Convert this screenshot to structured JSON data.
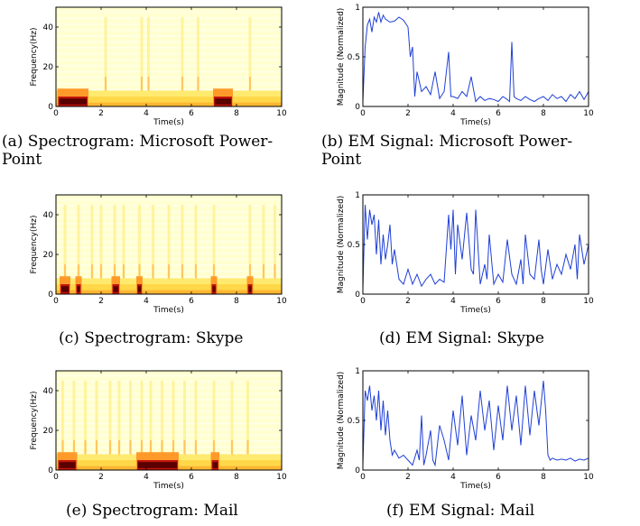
{
  "captions": {
    "a": "(a) Spectrogram: Microsoft Power-Point",
    "b": "(b) EM Signal: Microsoft Power-Point",
    "c": "(c) Spectrogram: Skype",
    "d": "(d) EM Signal: Skype",
    "e": "(e) Spectrogram: Mail",
    "f": "(f) EM Signal: Mail"
  },
  "caption_lines": {
    "a": [
      "(a) Spectrogram: Microsoft Power-",
      "Point"
    ],
    "b": [
      "(b) EM Signal: Microsoft Power-",
      "Point"
    ]
  },
  "colors": {
    "line": "#1f3fd6",
    "spec_light": "#ffffd0",
    "spec_mid": "#ffea70",
    "spec_warm": "#ff9a2a",
    "spec_hot": "#c2140c",
    "spec_dark": "#5a0000"
  },
  "chart_data": [
    {
      "id": "a",
      "type": "heatmap",
      "xlabel": "Time(s)",
      "ylabel": "Frequency(Hz)",
      "xlim": [
        0,
        10
      ],
      "ylim": [
        0,
        50
      ],
      "xticks": [
        "0",
        "2",
        "4",
        "6",
        "8",
        "10"
      ],
      "yticks": [
        "0",
        "20",
        "40"
      ],
      "low_band_hz": [
        0,
        5
      ],
      "strong_segments": [
        {
          "t0": 0.1,
          "t1": 1.4
        },
        {
          "t0": 7.0,
          "t1": 7.8
        }
      ],
      "bursts_s": [
        2.2,
        3.8,
        4.1,
        5.6,
        6.3,
        8.6
      ]
    },
    {
      "id": "b",
      "type": "line",
      "xlabel": "Time(s)",
      "ylabel": "Magnitude (Normalized)",
      "xlim": [
        0,
        10
      ],
      "ylim": [
        0,
        1
      ],
      "xticks": [
        "0",
        "2",
        "4",
        "6",
        "8",
        "10"
      ],
      "yticks": [
        "0",
        "0.5",
        "1"
      ],
      "x": [
        0,
        0.1,
        0.2,
        0.3,
        0.4,
        0.5,
        0.6,
        0.7,
        0.8,
        0.9,
        1.0,
        1.2,
        1.4,
        1.6,
        1.8,
        2.0,
        2.1,
        2.2,
        2.3,
        2.4,
        2.5,
        2.6,
        2.8,
        3.0,
        3.2,
        3.4,
        3.6,
        3.8,
        3.9,
        4.0,
        4.2,
        4.4,
        4.6,
        4.8,
        5.0,
        5.2,
        5.4,
        5.6,
        5.8,
        6.0,
        6.2,
        6.4,
        6.5,
        6.6,
        6.7,
        6.8,
        7.0,
        7.2,
        7.4,
        7.6,
        7.8,
        8.0,
        8.2,
        8.4,
        8.6,
        8.8,
        9.0,
        9.2,
        9.4,
        9.6,
        9.8,
        10.0
      ],
      "y": [
        0.05,
        0.6,
        0.82,
        0.88,
        0.75,
        0.9,
        0.85,
        0.95,
        0.85,
        0.92,
        0.88,
        0.85,
        0.86,
        0.9,
        0.87,
        0.8,
        0.5,
        0.6,
        0.1,
        0.35,
        0.25,
        0.15,
        0.2,
        0.12,
        0.35,
        0.08,
        0.15,
        0.55,
        0.1,
        0.1,
        0.08,
        0.15,
        0.1,
        0.3,
        0.05,
        0.1,
        0.06,
        0.08,
        0.07,
        0.05,
        0.1,
        0.07,
        0.05,
        0.65,
        0.1,
        0.08,
        0.06,
        0.1,
        0.07,
        0.05,
        0.08,
        0.1,
        0.06,
        0.12,
        0.08,
        0.1,
        0.05,
        0.12,
        0.08,
        0.15,
        0.07,
        0.15
      ]
    },
    {
      "id": "c",
      "type": "heatmap",
      "xlabel": "Time(s)",
      "ylabel": "Frequency(Hz)",
      "xlim": [
        0,
        10
      ],
      "ylim": [
        0,
        50
      ],
      "xticks": [
        "0",
        "2",
        "4",
        "6",
        "8",
        "10"
      ],
      "yticks": [
        "0",
        "20",
        "40"
      ],
      "low_band_hz": [
        0,
        5
      ],
      "strong_segments": [
        {
          "t0": 0.2,
          "t1": 0.6
        },
        {
          "t0": 0.9,
          "t1": 1.1
        },
        {
          "t0": 2.5,
          "t1": 2.8
        },
        {
          "t0": 3.6,
          "t1": 3.8
        },
        {
          "t0": 6.9,
          "t1": 7.1
        },
        {
          "t0": 8.5,
          "t1": 8.7
        }
      ],
      "bursts_s": [
        0.4,
        1.0,
        1.6,
        2.0,
        2.6,
        3.0,
        3.7,
        4.3,
        5.0,
        5.6,
        6.2,
        7.0,
        8.6,
        9.2,
        9.7
      ]
    },
    {
      "id": "d",
      "type": "line",
      "xlabel": "Time(s)",
      "ylabel": "Magnitude (Normalized)",
      "xlim": [
        0,
        10
      ],
      "ylim": [
        0,
        1
      ],
      "xticks": [
        "0",
        "2",
        "4",
        "6",
        "8",
        "10"
      ],
      "yticks": [
        "0",
        "0.5",
        "1"
      ],
      "x": [
        0,
        0.1,
        0.2,
        0.3,
        0.4,
        0.5,
        0.6,
        0.7,
        0.8,
        0.9,
        1.0,
        1.1,
        1.2,
        1.3,
        1.4,
        1.6,
        1.8,
        2.0,
        2.2,
        2.4,
        2.6,
        2.8,
        3.0,
        3.2,
        3.4,
        3.6,
        3.8,
        3.9,
        4.0,
        4.1,
        4.2,
        4.4,
        4.6,
        4.8,
        4.9,
        5.0,
        5.2,
        5.4,
        5.5,
        5.6,
        5.8,
        6.0,
        6.2,
        6.4,
        6.6,
        6.8,
        7.0,
        7.1,
        7.2,
        7.4,
        7.6,
        7.8,
        7.9,
        8.0,
        8.2,
        8.4,
        8.6,
        8.8,
        9.0,
        9.2,
        9.4,
        9.5,
        9.6,
        9.8,
        10.0
      ],
      "y": [
        0.05,
        0.9,
        0.55,
        0.85,
        0.7,
        0.8,
        0.4,
        0.75,
        0.3,
        0.6,
        0.35,
        0.5,
        0.7,
        0.3,
        0.45,
        0.15,
        0.1,
        0.25,
        0.1,
        0.2,
        0.08,
        0.15,
        0.2,
        0.1,
        0.15,
        0.12,
        0.8,
        0.45,
        0.85,
        0.2,
        0.7,
        0.35,
        0.82,
        0.25,
        0.2,
        0.85,
        0.1,
        0.3,
        0.15,
        0.6,
        0.1,
        0.2,
        0.12,
        0.55,
        0.2,
        0.1,
        0.35,
        0.1,
        0.6,
        0.2,
        0.15,
        0.55,
        0.25,
        0.1,
        0.45,
        0.15,
        0.3,
        0.2,
        0.4,
        0.25,
        0.5,
        0.15,
        0.6,
        0.3,
        0.5
      ]
    },
    {
      "id": "e",
      "type": "heatmap",
      "xlabel": "Time(s)",
      "ylabel": "Frequency(Hz)",
      "xlim": [
        0,
        10
      ],
      "ylim": [
        0,
        50
      ],
      "xticks": [
        "0",
        "2",
        "4",
        "6",
        "8",
        "10"
      ],
      "yticks": [
        "0",
        "20",
        "40"
      ],
      "low_band_hz": [
        0,
        5
      ],
      "strong_segments": [
        {
          "t0": 0.1,
          "t1": 0.9
        },
        {
          "t0": 3.6,
          "t1": 5.4
        },
        {
          "t0": 6.9,
          "t1": 7.2
        }
      ],
      "bursts_s": [
        0.3,
        0.8,
        1.3,
        1.8,
        2.4,
        2.8,
        3.3,
        3.8,
        4.2,
        4.7,
        5.2,
        5.7,
        6.2,
        7.0,
        7.8,
        8.5
      ]
    },
    {
      "id": "f",
      "type": "line",
      "xlabel": "Time(s)",
      "ylabel": "Magnitude (Normalized)",
      "xlim": [
        0,
        10
      ],
      "ylim": [
        0,
        1
      ],
      "xticks": [
        "0",
        "2",
        "4",
        "6",
        "8",
        "10"
      ],
      "yticks": [
        "0",
        "0.5",
        "1"
      ],
      "x": [
        0,
        0.1,
        0.2,
        0.3,
        0.4,
        0.5,
        0.6,
        0.7,
        0.8,
        0.9,
        1.0,
        1.1,
        1.2,
        1.3,
        1.4,
        1.6,
        1.8,
        2.0,
        2.2,
        2.4,
        2.5,
        2.6,
        2.7,
        2.8,
        3.0,
        3.1,
        3.2,
        3.4,
        3.6,
        3.8,
        4.0,
        4.2,
        4.4,
        4.6,
        4.8,
        5.0,
        5.2,
        5.4,
        5.6,
        5.8,
        6.0,
        6.2,
        6.4,
        6.6,
        6.8,
        7.0,
        7.2,
        7.4,
        7.6,
        7.8,
        8.0,
        8.1,
        8.2,
        8.3,
        8.4,
        8.6,
        8.8,
        9.0,
        9.2,
        9.4,
        9.6,
        9.8,
        10.0
      ],
      "y": [
        0.05,
        0.8,
        0.7,
        0.85,
        0.6,
        0.75,
        0.5,
        0.8,
        0.4,
        0.7,
        0.35,
        0.6,
        0.3,
        0.15,
        0.2,
        0.12,
        0.15,
        0.1,
        0.05,
        0.2,
        0.1,
        0.55,
        0.05,
        0.15,
        0.4,
        0.1,
        0.05,
        0.45,
        0.3,
        0.1,
        0.6,
        0.25,
        0.75,
        0.15,
        0.55,
        0.3,
        0.8,
        0.4,
        0.7,
        0.2,
        0.65,
        0.3,
        0.85,
        0.4,
        0.75,
        0.25,
        0.85,
        0.35,
        0.8,
        0.45,
        0.9,
        0.6,
        0.15,
        0.1,
        0.12,
        0.1,
        0.11,
        0.1,
        0.12,
        0.09,
        0.11,
        0.1,
        0.12
      ]
    }
  ]
}
